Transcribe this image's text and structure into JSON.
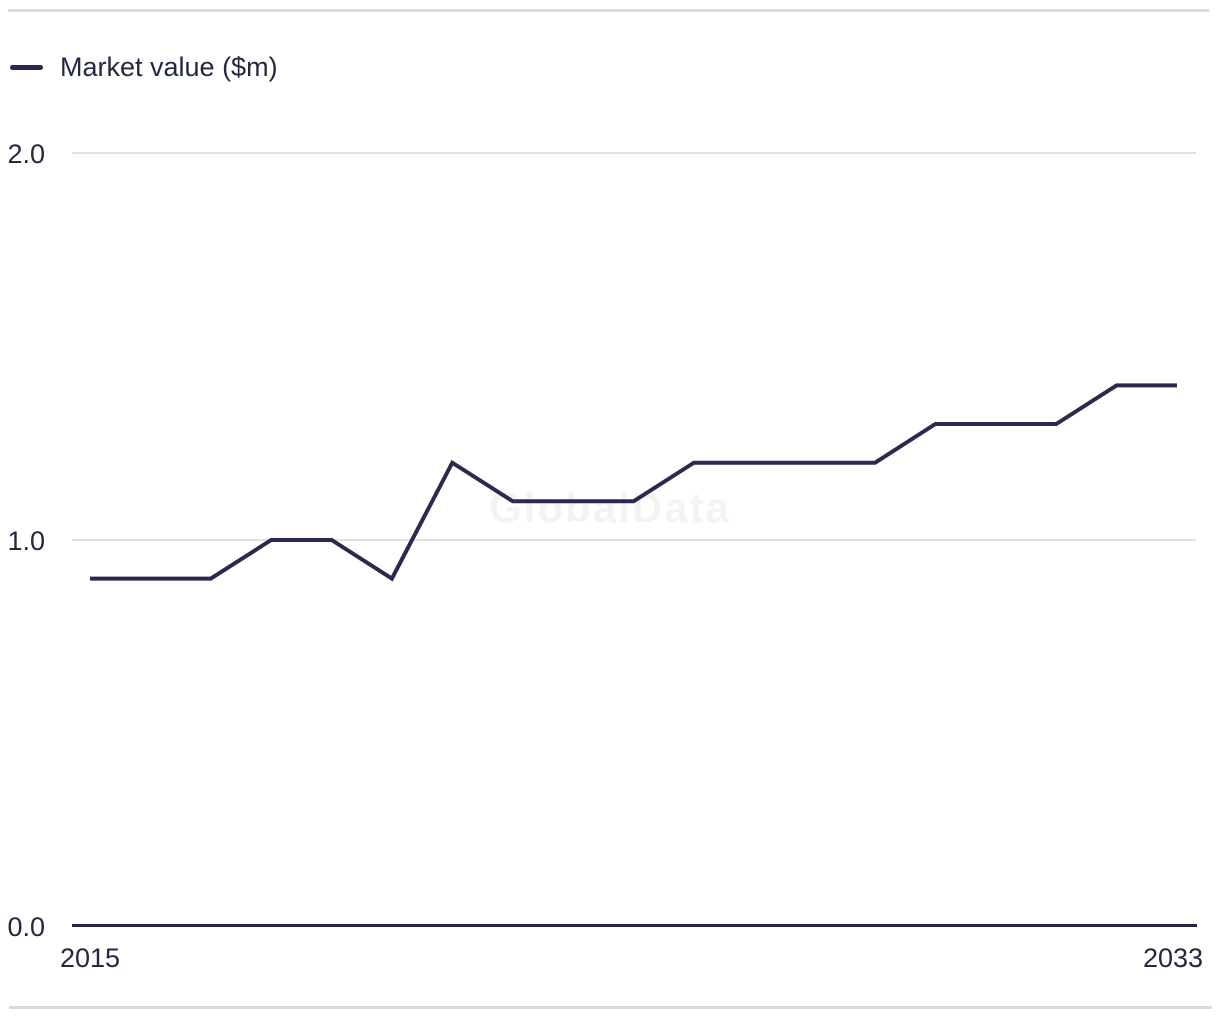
{
  "chart_data": {
    "type": "line",
    "title": "",
    "xlabel": "",
    "ylabel": "",
    "x": [
      2015,
      2016,
      2017,
      2018,
      2019,
      2020,
      2021,
      2022,
      2023,
      2024,
      2025,
      2026,
      2027,
      2028,
      2029,
      2030,
      2031,
      2032,
      2033
    ],
    "series": [
      {
        "name": "Market value ($m)",
        "color": "#2b2950",
        "values": [
          0.9,
          0.9,
          0.9,
          1.0,
          1.0,
          0.9,
          1.2,
          1.1,
          1.1,
          1.1,
          1.2,
          1.2,
          1.2,
          1.2,
          1.3,
          1.3,
          1.3,
          1.4,
          1.4
        ]
      }
    ],
    "ylim": [
      0,
      2
    ],
    "yticks": [
      {
        "value": 2.0,
        "label": "2.0"
      },
      {
        "value": 1.0,
        "label": "1.0"
      },
      {
        "value": 0.0,
        "label": "0.0"
      }
    ],
    "xtick_labels_visible": [
      "2015",
      "2033"
    ],
    "grid": "horizontal",
    "legend_position": "top-left",
    "watermark": "GlobalData",
    "colors": {
      "series": "#2b2950",
      "axis": "#262343",
      "text": "#232840",
      "gridline": "#e1e1e1",
      "border": "#d9d9d9",
      "watermark": "#f3f3f3"
    }
  }
}
